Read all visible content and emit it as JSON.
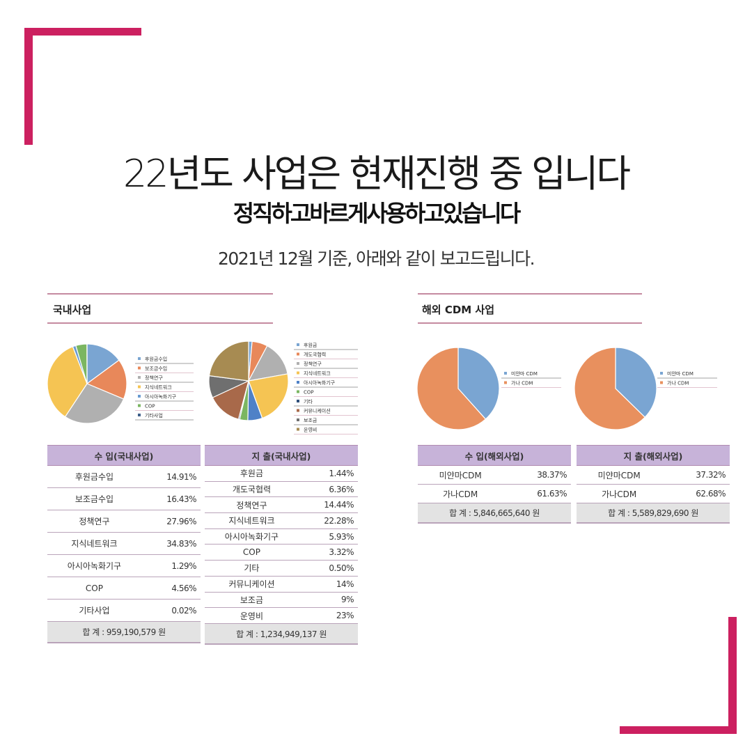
{
  "heading": {
    "title": "22년도 사업은 현재진행 중 입니다",
    "subtitle": "정직하고바르게사용하고있습니다",
    "basis": "2021년 12월 기준, 아래와 같이 보고드립니다."
  },
  "sections": {
    "domestic_title": "국내사업",
    "overseas_title": "해외 CDM 사업"
  },
  "colors": {
    "accent": "#cc2060",
    "table_header": "#c7b3d9",
    "total_row": "#e3e3e3"
  },
  "chart_data": [
    {
      "type": "pie",
      "id": "domestic_income",
      "categories": [
        "후원금수입",
        "보조금수입",
        "정책연구",
        "지식네트워크",
        "아시아녹화기구",
        "COP",
        "기타사업"
      ],
      "values": [
        14.91,
        16.43,
        27.96,
        34.83,
        1.29,
        4.56,
        0.02
      ],
      "colors": [
        "#7aa5d2",
        "#e8885a",
        "#b0b0b0",
        "#f5c453",
        "#6a9bd1",
        "#7bb661",
        "#3f5f8a"
      ],
      "legend": "right"
    },
    {
      "type": "pie",
      "id": "domestic_expense",
      "categories": [
        "후원금",
        "개도국협력",
        "정책연구",
        "지식네트워크",
        "아시아녹화기구",
        "COP",
        "기타",
        "커뮤니케이션",
        "보조금",
        "운영비"
      ],
      "values": [
        1.44,
        6.36,
        14.44,
        22.28,
        5.93,
        3.32,
        0.5,
        14,
        9,
        23
      ],
      "colors": [
        "#7aa5d2",
        "#e8885a",
        "#b0b0b0",
        "#f5c453",
        "#4f81c7",
        "#7bb661",
        "#2f4f7a",
        "#a8694a",
        "#6f6f6f",
        "#a78b52"
      ],
      "legend": "right"
    },
    {
      "type": "pie",
      "id": "overseas_income",
      "categories": [
        "미얀마 CDM",
        "가나 CDM"
      ],
      "values": [
        38.37,
        61.63
      ],
      "colors": [
        "#7aa5d2",
        "#e8905e"
      ],
      "legend": "right"
    },
    {
      "type": "pie",
      "id": "overseas_expense",
      "categories": [
        "미얀마 CDM",
        "가나 CDM"
      ],
      "values": [
        37.32,
        62.68
      ],
      "colors": [
        "#7aa5d2",
        "#e8905e"
      ],
      "legend": "right"
    }
  ],
  "tables": {
    "domestic_income": {
      "header": "수   입(국내사업)",
      "rows": [
        {
          "label": "후원금수입",
          "value": "14.91%"
        },
        {
          "label": "보조금수입",
          "value": "16.43%"
        },
        {
          "label": "정책연구",
          "value": "27.96%"
        },
        {
          "label": "지식네트워크",
          "value": "34.83%"
        },
        {
          "label": "아시아녹화기구",
          "value": "1.29%"
        },
        {
          "label": "COP",
          "value": "4.56%"
        },
        {
          "label": "기타사업",
          "value": "0.02%"
        }
      ],
      "total": "합   계 : 959,190,579 원"
    },
    "domestic_expense": {
      "header": "지   출(국내사업)",
      "rows": [
        {
          "label": "후원금",
          "value": "1.44%"
        },
        {
          "label": "개도국협력",
          "value": "6.36%"
        },
        {
          "label": "정책연구",
          "value": "14.44%"
        },
        {
          "label": "지식네트워크",
          "value": "22.28%"
        },
        {
          "label": "아시아녹화기구",
          "value": "5.93%"
        },
        {
          "label": "COP",
          "value": "3.32%"
        },
        {
          "label": "기타",
          "value": "0.50%"
        },
        {
          "label": "커뮤니케이션",
          "value": "14%"
        },
        {
          "label": "보조금",
          "value": "9%"
        },
        {
          "label": "운영비",
          "value": "23%"
        }
      ],
      "total": "합   계 : 1,234,949,137 원"
    },
    "overseas_income": {
      "header": "수   입(해외사업)",
      "rows": [
        {
          "label": "미얀마CDM",
          "value": "38.37%"
        },
        {
          "label": "가나CDM",
          "value": "61.63%"
        }
      ],
      "total": "합   계 : 5,846,665,640 원"
    },
    "overseas_expense": {
      "header": "지   출(해외사업)",
      "rows": [
        {
          "label": "미얀마CDM",
          "value": "37.32%"
        },
        {
          "label": "가나CDM",
          "value": "62.68%"
        }
      ],
      "total": "합   계 : 5,589,829,690 원"
    }
  }
}
